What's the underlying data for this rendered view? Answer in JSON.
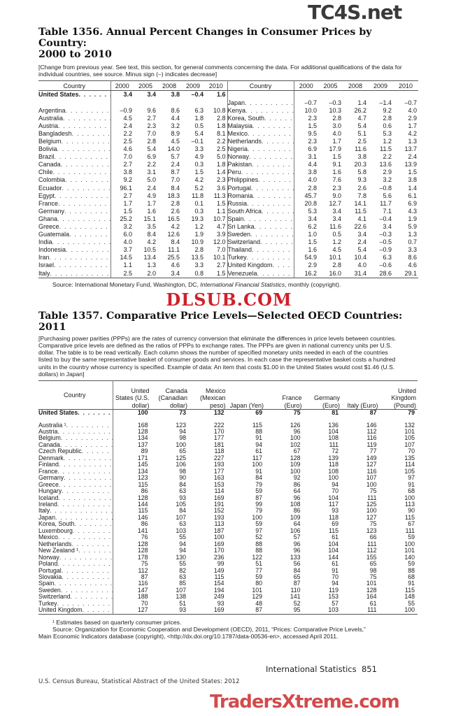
{
  "watermarks": {
    "top": "TC4S.net",
    "middle": "DLSUB.COM",
    "bottom": "TradersXtreme.com"
  },
  "table1356": {
    "title": "Table 1356. Annual Percent Changes in Consumer Prices by Country:",
    "title_line2": "2000 to 2010",
    "note": "[Change from previous year. See text, this section, for general comments concerning the data. For additional qualifications of the data for individual countries, see source. Minus sign (–) indicates decrease]",
    "headers": [
      "Country",
      "2000",
      "2005",
      "2008",
      "2009",
      "2010"
    ],
    "us_row": {
      "country": "United States",
      "values": [
        "3.4",
        "3.4",
        "3.8",
        "–0.4",
        "1.6"
      ]
    },
    "left_rows": [
      {
        "country": "Argentina",
        "values": [
          "–0.9",
          "9.6",
          "8.6",
          "6.3",
          "10.8"
        ]
      },
      {
        "country": "Australia",
        "values": [
          "4.5",
          "2.7",
          "4.4",
          "1.8",
          "2.8"
        ]
      },
      {
        "country": "Austria",
        "values": [
          "2.4",
          "2.3",
          "3.2",
          "0.5",
          "1.8"
        ]
      },
      {
        "country": "Bangladesh",
        "values": [
          "2.2",
          "7.0",
          "8.9",
          "5.4",
          "8.1"
        ]
      },
      {
        "country": "Belgium",
        "values": [
          "2.5",
          "2.8",
          "4.5",
          "–0.1",
          "2.2"
        ]
      },
      {
        "country": "Bolivia",
        "values": [
          "4.6",
          "5.4",
          "14.0",
          "3.3",
          "2.5"
        ]
      },
      {
        "country": "Brazil",
        "values": [
          "7.0",
          "6.9",
          "5.7",
          "4.9",
          "5.0"
        ]
      },
      {
        "country": "Canada",
        "values": [
          "2.7",
          "2.2",
          "2.4",
          "0.3",
          "1.8"
        ]
      },
      {
        "country": "Chile",
        "values": [
          "3.8",
          "3.1",
          "8.7",
          "1.5",
          "1.4"
        ]
      },
      {
        "country": "Colombia",
        "values": [
          "9.2",
          "5.0",
          "7.0",
          "4.2",
          "2.3"
        ]
      },
      {
        "country": "Ecuador",
        "values": [
          "96.1",
          "2.4",
          "8.4",
          "5.2",
          "3.6"
        ]
      },
      {
        "country": "Egypt",
        "values": [
          "2.7",
          "4.9",
          "18.3",
          "11.8",
          "11.3"
        ]
      },
      {
        "country": "France",
        "values": [
          "1.7",
          "1.7",
          "2.8",
          "0.1",
          "1.5"
        ]
      },
      {
        "country": "Germany",
        "values": [
          "1.5",
          "1.6",
          "2.6",
          "0.3",
          "1.1"
        ]
      },
      {
        "country": "Ghana",
        "values": [
          "25.2",
          "15.1",
          "16.5",
          "19.3",
          "10.7"
        ]
      },
      {
        "country": "Greece",
        "values": [
          "3.2",
          "3.5",
          "4.2",
          "1.2",
          "4.7"
        ]
      },
      {
        "country": "Guatemala",
        "values": [
          "6.0",
          "8.4",
          "12.6",
          "1.9",
          "3.9"
        ]
      },
      {
        "country": "India",
        "values": [
          "4.0",
          "4.2",
          "8.4",
          "10.9",
          "12.0"
        ]
      },
      {
        "country": "Indonesia",
        "values": [
          "3.7",
          "10.5",
          "11.1",
          "2.8",
          "7.0"
        ]
      },
      {
        "country": "Iran",
        "values": [
          "14.5",
          "13.4",
          "25.5",
          "13.5",
          "10.1"
        ]
      },
      {
        "country": "Israel",
        "values": [
          "1.1",
          "1.3",
          "4.6",
          "3.3",
          "2.7"
        ]
      },
      {
        "country": "Italy",
        "values": [
          "2.5",
          "2.0",
          "3.4",
          "0.8",
          "1.5"
        ]
      }
    ],
    "right_rows": [
      {
        "country": "Japan",
        "values": [
          "–0.7",
          "–0.3",
          "1.4",
          "–1.4",
          "–0.7"
        ]
      },
      {
        "country": "Kenya",
        "values": [
          "10.0",
          "10.3",
          "26.2",
          "9.2",
          "4.0"
        ]
      },
      {
        "country": "Korea, South",
        "values": [
          "2.3",
          "2.8",
          "4.7",
          "2.8",
          "2.9"
        ]
      },
      {
        "country": "Malaysia",
        "values": [
          "1.5",
          "3.0",
          "5.4",
          "0.6",
          "1.7"
        ]
      },
      {
        "country": "Mexico",
        "values": [
          "9.5",
          "4.0",
          "5.1",
          "5.3",
          "4.2"
        ]
      },
      {
        "country": "Netherlands",
        "values": [
          "2.3",
          "1.7",
          "2.5",
          "1.2",
          "1.3"
        ]
      },
      {
        "country": "Nigeria",
        "values": [
          "6.9",
          "17.9",
          "11.6",
          "11.5",
          "13.7"
        ]
      },
      {
        "country": "Norway",
        "values": [
          "3.1",
          "1.5",
          "3.8",
          "2.2",
          "2.4"
        ]
      },
      {
        "country": "Pakistan",
        "values": [
          "4.4",
          "9.1",
          "20.3",
          "13.6",
          "13.9"
        ]
      },
      {
        "country": "Peru",
        "values": [
          "3.8",
          "1.6",
          "5.8",
          "2.9",
          "1.5"
        ]
      },
      {
        "country": "Philippines",
        "values": [
          "4.0",
          "7.6",
          "9.3",
          "3.2",
          "3.8"
        ]
      },
      {
        "country": "Portugal",
        "values": [
          "2.8",
          "2.3",
          "2.6",
          "–0.8",
          "1.4"
        ]
      },
      {
        "country": "Romania",
        "values": [
          "45.7",
          "9.0",
          "7.8",
          "5.6",
          "6.1"
        ]
      },
      {
        "country": "Russia",
        "values": [
          "20.8",
          "12.7",
          "14.1",
          "11.7",
          "6.9"
        ]
      },
      {
        "country": "South Africa",
        "values": [
          "5.3",
          "3.4",
          "11.5",
          "7.1",
          "4.3"
        ]
      },
      {
        "country": "Spain",
        "values": [
          "3.4",
          "3.4",
          "4.1",
          "–0.4",
          "1.9"
        ]
      },
      {
        "country": "Sri Lanka",
        "values": [
          "6.2",
          "11.6",
          "22.6",
          "3.4",
          "5.9"
        ]
      },
      {
        "country": "Sweden",
        "values": [
          "1.0",
          "0.5",
          "3.4",
          "–0.3",
          "1.3"
        ]
      },
      {
        "country": "Switzerland",
        "values": [
          "1.5",
          "1.2",
          "2.4",
          "–0.5",
          "0.7"
        ]
      },
      {
        "country": "Thailand",
        "values": [
          "1.6",
          "4.5",
          "5.4",
          "–0.9",
          "3.3"
        ]
      },
      {
        "country": "Turkey",
        "values": [
          "54.9",
          "10.1",
          "10.4",
          "6.3",
          "8.6"
        ]
      },
      {
        "country": "United Kingdom",
        "values": [
          "2.9",
          "2.8",
          "4.0",
          "–0.6",
          "4.6"
        ]
      },
      {
        "country": "Venezuela",
        "values": [
          "16.2",
          "16.0",
          "31.4",
          "28.6",
          "29.1"
        ]
      }
    ],
    "source_prefix": "Source: International Monetary Fund, Washington, DC, ",
    "source_italic": "International Financial Statistics",
    "source_suffix": ", monthly (copyright)."
  },
  "table1357": {
    "title": "Table 1357. Comparative Price Levels—Selected OECD Countries: 2011",
    "note": "[Purchasing power parities (PPPs) are the rates of currency conversion that eliminate the differences in price levels between countries. Comparative price levels are defined as the ratios of PPPs to exchange rates. The PPPs are given in national currency units per U.S. dollar. The table is to be read vertically. Each column shows the number of specified monetary units needed in each of the countries listed to buy the same representative basket of consumer goods and services. In each case the representative basket costs a hundred units in the country whose currency is specified. Example of data: An item that costs $1.00 in the United States would cost $1.46 (U.S. dollars) in Japan]",
    "headers": [
      "Country",
      "United States (U.S. dollar)",
      "Canada (Canadian dollar)",
      "Mexico (Mexican peso)",
      "Japan (Yen)",
      "France (Euro)",
      "Germany (Euro)",
      "Italy (Euro)",
      "United Kingdom (Pound)"
    ],
    "us_row": {
      "country": "United States",
      "values": [
        "100",
        "73",
        "132",
        "69",
        "75",
        "81",
        "87",
        "79"
      ]
    },
    "rows": [
      {
        "country": "Australia ¹",
        "values": [
          "168",
          "123",
          "222",
          "115",
          "126",
          "136",
          "146",
          "132"
        ]
      },
      {
        "country": "Austria",
        "values": [
          "128",
          "94",
          "170",
          "88",
          "96",
          "104",
          "112",
          "101"
        ]
      },
      {
        "country": "Belgium",
        "values": [
          "134",
          "98",
          "177",
          "91",
          "100",
          "108",
          "116",
          "105"
        ]
      },
      {
        "country": "Canada",
        "values": [
          "137",
          "100",
          "181",
          "94",
          "102",
          "111",
          "119",
          "107"
        ]
      },
      {
        "country": "Czech Republic",
        "values": [
          "89",
          "65",
          "118",
          "61",
          "67",
          "72",
          "77",
          "70"
        ]
      },
      {
        "country": "Denmark",
        "values": [
          "171",
          "125",
          "227",
          "117",
          "128",
          "139",
          "149",
          "135"
        ]
      },
      {
        "country": "Finland",
        "values": [
          "145",
          "106",
          "193",
          "100",
          "109",
          "118",
          "127",
          "114"
        ]
      },
      {
        "country": "France",
        "values": [
          "134",
          "98",
          "177",
          "91",
          "100",
          "108",
          "116",
          "105"
        ]
      },
      {
        "country": "Germany",
        "values": [
          "123",
          "90",
          "163",
          "84",
          "92",
          "100",
          "107",
          "97"
        ]
      },
      {
        "country": "Greece",
        "values": [
          "115",
          "84",
          "153",
          "79",
          "86",
          "94",
          "100",
          "91"
        ]
      },
      {
        "country": "Hungary",
        "values": [
          "86",
          "63",
          "114",
          "59",
          "64",
          "70",
          "75",
          "68"
        ]
      },
      {
        "country": "Iceland",
        "values": [
          "128",
          "93",
          "169",
          "87",
          "96",
          "104",
          "111",
          "100"
        ]
      },
      {
        "country": "Ireland",
        "values": [
          "144",
          "105",
          "191",
          "99",
          "108",
          "117",
          "125",
          "113"
        ]
      },
      {
        "country": "Italy",
        "values": [
          "115",
          "84",
          "152",
          "79",
          "86",
          "93",
          "100",
          "90"
        ]
      },
      {
        "country": "Japan",
        "values": [
          "146",
          "107",
          "193",
          "100",
          "109",
          "118",
          "127",
          "115"
        ]
      },
      {
        "country": "Korea, South",
        "values": [
          "86",
          "63",
          "113",
          "59",
          "64",
          "69",
          "75",
          "67"
        ]
      },
      {
        "country": "Luxembourg",
        "values": [
          "141",
          "103",
          "187",
          "97",
          "106",
          "115",
          "123",
          "111"
        ]
      },
      {
        "country": "Mexico",
        "values": [
          "76",
          "55",
          "100",
          "52",
          "57",
          "61",
          "66",
          "59"
        ]
      },
      {
        "country": "Netherlands",
        "values": [
          "128",
          "94",
          "169",
          "88",
          "96",
          "104",
          "111",
          "100"
        ]
      },
      {
        "country": "New Zealand ¹",
        "values": [
          "128",
          "94",
          "170",
          "88",
          "96",
          "104",
          "112",
          "101"
        ]
      },
      {
        "country": "Norway",
        "values": [
          "178",
          "130",
          "236",
          "122",
          "133",
          "144",
          "155",
          "140"
        ]
      },
      {
        "country": "Poland",
        "values": [
          "75",
          "55",
          "99",
          "51",
          "56",
          "61",
          "65",
          "59"
        ]
      },
      {
        "country": "Portugal",
        "values": [
          "112",
          "82",
          "149",
          "77",
          "84",
          "91",
          "98",
          "88"
        ]
      },
      {
        "country": "Slovakia",
        "values": [
          "87",
          "63",
          "115",
          "59",
          "65",
          "70",
          "75",
          "68"
        ]
      },
      {
        "country": "Spain",
        "values": [
          "116",
          "85",
          "154",
          "80",
          "87",
          "94",
          "101",
          "91"
        ]
      },
      {
        "country": "Sweden",
        "values": [
          "147",
          "107",
          "194",
          "101",
          "110",
          "119",
          "128",
          "115"
        ]
      },
      {
        "country": "Switzerland",
        "values": [
          "188",
          "138",
          "249",
          "129",
          "141",
          "153",
          "164",
          "148"
        ]
      },
      {
        "country": "Turkey",
        "values": [
          "70",
          "51",
          "93",
          "48",
          "52",
          "57",
          "61",
          "55"
        ]
      },
      {
        "country": "United Kingdom",
        "values": [
          "127",
          "93",
          "169",
          "87",
          "95",
          "103",
          "111",
          "100"
        ]
      }
    ],
    "footnote": "¹ Estimates based on quarterly consumer prices.",
    "source": "Source: Organization for Economic Cooperation and Development (OECD), 2011, “Prices: Comparative Price Levels,” Main Economic Indicators database (copyright), <http://dx.doi.org/10.1787/data-00536-en>, accessed April 2011."
  },
  "footer": {
    "section": "International Statistics",
    "page_number": "851",
    "publisher": "U.S. Census Bureau, Statistical Abstract of the United States: 2012"
  }
}
